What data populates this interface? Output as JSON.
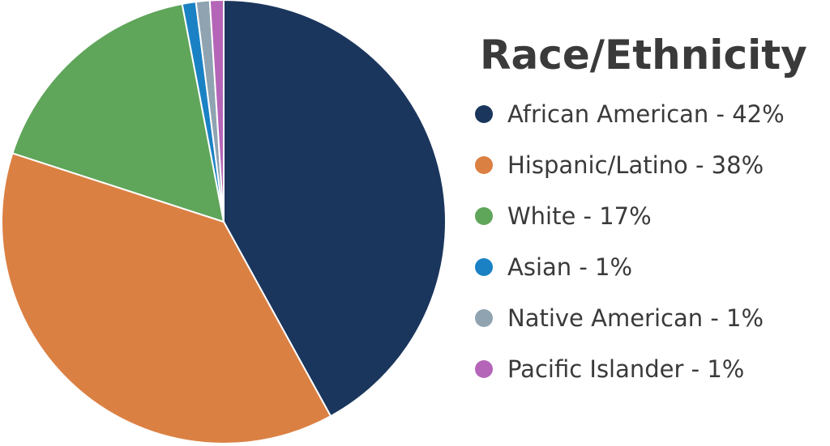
{
  "chart_data": {
    "type": "pie",
    "title": "Race/Ethnicity",
    "categories": [
      "African American",
      "Hispanic/Latino",
      "White",
      "Asian",
      "Native American",
      "Pacific Islander"
    ],
    "values": [
      42,
      38,
      17,
      1,
      1,
      1
    ],
    "legend_labels": [
      "African American - 42%",
      "Hispanic/Latino - 38%",
      "White - 17%",
      "Asian - 1%",
      "Native American - 1%",
      "Pacific Islander - 1%"
    ],
    "colors": [
      "#1b365d",
      "#db8043",
      "#5fa55a",
      "#1a82c4",
      "#8fa3b1",
      "#b565b8"
    ],
    "legend_placement": "right"
  }
}
